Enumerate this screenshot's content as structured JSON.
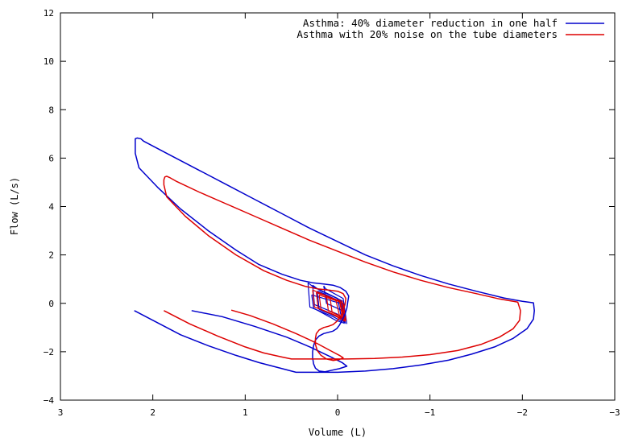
{
  "chart_data": {
    "type": "line",
    "title": "",
    "xlabel": "Volume (L)",
    "ylabel": "Flow (L/s)",
    "xlim": [
      3,
      -3
    ],
    "ylim": [
      -4,
      12
    ],
    "x_reversed": true,
    "xticks": [
      3,
      2,
      1,
      0,
      -1,
      -2,
      -3
    ],
    "xtick_labels": [
      "3",
      "2",
      "1",
      "0",
      "−1",
      "−2",
      "−3"
    ],
    "yticks": [
      -4,
      -2,
      0,
      2,
      4,
      6,
      8,
      10,
      12
    ],
    "ytick_labels": [
      "−4",
      "−2",
      "0",
      "2",
      "4",
      "6",
      "8",
      "10",
      "12"
    ],
    "grid": false,
    "legend_position": "top-right",
    "series": [
      {
        "name": "Asthma: 40% diameter reduction in one half",
        "color": "#0000cc",
        "x": [
          1.58,
          1.25,
          0.9,
          0.55,
          0.3,
          0.08,
          -0.05,
          -0.1,
          -0.02,
          0.08,
          0.14,
          0.2,
          0.24,
          0.26,
          0.27,
          0.27,
          0.26,
          0.24,
          0.2,
          0.15,
          0.1,
          0.05,
          0.01,
          -0.02,
          -0.05,
          -0.08,
          -0.1,
          -0.11,
          -0.12,
          -0.09,
          -0.03,
          0.05,
          0.15,
          0.27,
          0.4,
          0.6,
          0.85,
          1.1,
          1.4,
          1.7,
          1.95,
          2.15,
          2.19,
          2.19,
          2.19,
          2.17,
          2.13,
          2.1,
          2.05,
          1.8,
          1.5,
          1.2,
          0.9,
          0.6,
          0.3,
          0.0,
          -0.3,
          -0.6,
          -0.9,
          -1.2,
          -1.5,
          -1.8,
          -2.0,
          -2.12,
          -2.13,
          -2.12,
          -2.05,
          -1.9,
          -1.7,
          -1.45,
          -1.2,
          -0.9,
          -0.6,
          -0.3,
          0.0,
          0.3,
          0.45,
          0.6,
          0.85,
          1.1,
          1.4,
          1.7,
          1.95,
          2.2
        ],
        "y": [
          -0.3,
          -0.55,
          -0.95,
          -1.4,
          -1.8,
          -2.2,
          -2.45,
          -2.6,
          -2.7,
          -2.78,
          -2.83,
          -2.8,
          -2.68,
          -2.5,
          -2.25,
          -2.0,
          -1.75,
          -1.52,
          -1.35,
          -1.25,
          -1.2,
          -1.15,
          -1.05,
          -0.9,
          -0.7,
          -0.45,
          -0.2,
          0.05,
          0.3,
          0.5,
          0.65,
          0.75,
          0.8,
          0.85,
          0.95,
          1.2,
          1.6,
          2.2,
          3.0,
          3.9,
          4.8,
          5.6,
          6.2,
          6.6,
          6.8,
          6.83,
          6.8,
          6.7,
          6.6,
          6.1,
          5.5,
          4.9,
          4.3,
          3.7,
          3.1,
          2.55,
          2.0,
          1.55,
          1.15,
          0.8,
          0.5,
          0.22,
          0.08,
          0.02,
          -0.3,
          -0.65,
          -1.05,
          -1.45,
          -1.8,
          -2.1,
          -2.35,
          -2.55,
          -2.7,
          -2.8,
          -2.85,
          -2.85,
          -2.85,
          -2.7,
          -2.45,
          -2.15,
          -1.75,
          -1.3,
          -0.8,
          -0.3
        ]
      },
      {
        "name": "Asthma with 20% noise on the tube diameters",
        "color": "#dd0000",
        "x": [
          1.15,
          0.95,
          0.7,
          0.45,
          0.25,
          0.08,
          -0.02,
          -0.06,
          -0.02,
          0.05,
          0.12,
          0.18,
          0.22,
          0.24,
          0.24,
          0.23,
          0.2,
          0.15,
          0.1,
          0.05,
          0.01,
          -0.03,
          -0.06,
          -0.08,
          -0.09,
          -0.06,
          0.0,
          0.1,
          0.22,
          0.35,
          0.55,
          0.8,
          1.1,
          1.4,
          1.65,
          1.85,
          1.88,
          1.88,
          1.87,
          1.85,
          1.82,
          1.75,
          1.5,
          1.2,
          0.9,
          0.6,
          0.3,
          0.0,
          -0.3,
          -0.6,
          -0.9,
          -1.2,
          -1.5,
          -1.75,
          -1.95,
          -1.98,
          -1.97,
          -1.9,
          -1.75,
          -1.55,
          -1.3,
          -1.0,
          -0.7,
          -0.4,
          -0.1,
          0.2,
          0.5,
          0.6,
          0.8,
          1.0,
          1.3,
          1.6,
          1.88
        ],
        "y": [
          -0.28,
          -0.5,
          -0.85,
          -1.25,
          -1.6,
          -1.95,
          -2.15,
          -2.25,
          -2.32,
          -2.36,
          -2.3,
          -2.15,
          -1.95,
          -1.7,
          -1.45,
          -1.25,
          -1.1,
          -1.0,
          -0.95,
          -0.88,
          -0.75,
          -0.55,
          -0.3,
          -0.05,
          0.2,
          0.4,
          0.5,
          0.55,
          0.6,
          0.7,
          0.95,
          1.35,
          2.0,
          2.8,
          3.6,
          4.4,
          4.9,
          5.1,
          5.22,
          5.25,
          5.2,
          5.05,
          4.6,
          4.1,
          3.6,
          3.1,
          2.6,
          2.15,
          1.7,
          1.3,
          0.95,
          0.65,
          0.4,
          0.18,
          0.05,
          -0.3,
          -0.7,
          -1.05,
          -1.4,
          -1.7,
          -1.95,
          -2.12,
          -2.22,
          -2.28,
          -2.3,
          -2.3,
          -2.3,
          -2.22,
          -2.05,
          -1.8,
          -1.35,
          -0.85,
          -0.3
        ]
      }
    ],
    "inner_loops": [
      {
        "color": "#0000cc",
        "x": [
          0.32,
          0.3,
          0.05,
          -0.05,
          0.0,
          0.27,
          0.32
        ],
        "y": [
          0.85,
          -0.15,
          -0.55,
          -0.75,
          0.2,
          0.7,
          0.85
        ]
      },
      {
        "color": "#0000cc",
        "x": [
          0.27,
          0.25,
          0.0,
          -0.08,
          -0.05,
          0.2,
          0.27
        ],
        "y": [
          0.75,
          -0.05,
          -0.45,
          -0.8,
          0.1,
          0.55,
          0.75
        ]
      },
      {
        "color": "#0000cc",
        "x": [
          0.15,
          0.12,
          -0.08,
          -0.1,
          -0.06,
          0.13,
          0.15
        ],
        "y": [
          0.72,
          0.0,
          -0.35,
          -0.85,
          0.2,
          0.6,
          0.72
        ]
      },
      {
        "color": "#0000cc",
        "x": [
          0.22,
          0.2,
          -0.02,
          -0.08,
          -0.04,
          0.18,
          0.22
        ],
        "y": [
          0.5,
          -0.25,
          -0.6,
          -0.78,
          0.05,
          0.45,
          0.5
        ]
      },
      {
        "color": "#0000cc",
        "x": [
          0.28,
          0.26,
          0.02,
          -0.07,
          -0.03,
          0.24,
          0.28
        ],
        "y": [
          0.35,
          -0.2,
          -0.7,
          -0.82,
          0.0,
          0.3,
          0.35
        ]
      },
      {
        "color": "#dd0000",
        "x": [
          0.27,
          0.25,
          0.05,
          -0.03,
          0.02,
          0.24,
          0.27
        ],
        "y": [
          0.55,
          -0.15,
          -0.45,
          -0.65,
          0.15,
          0.5,
          0.55
        ]
      },
      {
        "color": "#dd0000",
        "x": [
          0.23,
          0.21,
          0.02,
          -0.06,
          -0.02,
          0.2,
          0.23
        ],
        "y": [
          0.45,
          -0.2,
          -0.5,
          -0.7,
          0.1,
          0.4,
          0.45
        ]
      },
      {
        "color": "#dd0000",
        "x": [
          0.2,
          0.18,
          0.0,
          -0.07,
          -0.03,
          0.17,
          0.2
        ],
        "y": [
          0.35,
          -0.25,
          -0.55,
          -0.72,
          0.05,
          0.3,
          0.35
        ]
      },
      {
        "color": "#dd0000",
        "x": [
          0.12,
          0.1,
          -0.04,
          -0.08,
          -0.05,
          0.1,
          0.12
        ],
        "y": [
          0.3,
          -0.3,
          -0.55,
          -0.72,
          0.08,
          0.25,
          0.3
        ]
      },
      {
        "color": "#dd0000",
        "x": [
          0.08,
          0.06,
          -0.05,
          -0.09,
          -0.06,
          0.05,
          0.08
        ],
        "y": [
          0.2,
          -0.35,
          -0.6,
          -0.7,
          0.0,
          0.18,
          0.2
        ]
      }
    ]
  }
}
